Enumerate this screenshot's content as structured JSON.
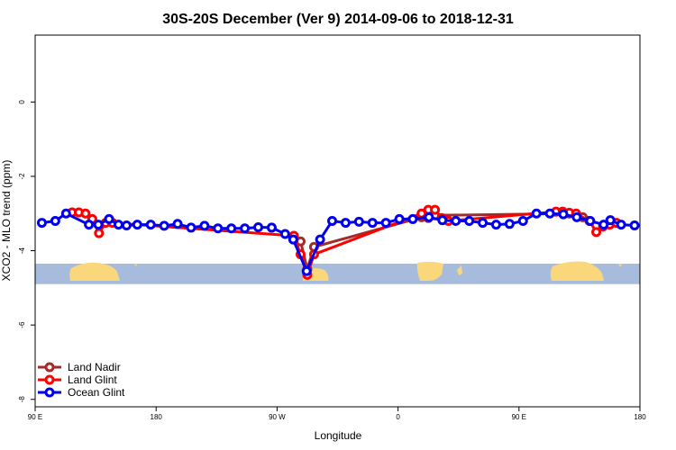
{
  "chart_data": {
    "type": "line",
    "title": "30S-20S December (Ver 9)   2014-09-06 to 2018-12-31",
    "xlabel": "Longitude",
    "ylabel": "XCO2 - MLO trend (ppm)",
    "xlim": [
      90,
      540
    ],
    "ylim": [
      -8.2,
      1.8
    ],
    "x_ticks": [
      {
        "value": 90,
        "label": "90 E"
      },
      {
        "value": 180,
        "label": "180"
      },
      {
        "value": 270,
        "label": "90 W"
      },
      {
        "value": 360,
        "label": "0"
      },
      {
        "value": 450,
        "label": "90 E"
      },
      {
        "value": 540,
        "label": "180"
      }
    ],
    "y_ticks": [
      {
        "value": 0,
        "label": "0"
      },
      {
        "value": -2,
        "label": "-2"
      },
      {
        "value": -4,
        "label": "-4"
      },
      {
        "value": -6,
        "label": "-6"
      },
      {
        "value": -8,
        "label": "-8"
      }
    ],
    "legend_position": "bottom-left",
    "map_strip": {
      "y_range": [
        -4.35,
        -4.9
      ],
      "ocean_color": "#a7bcdc",
      "land_color": "#fad77b"
    },
    "series": [
      {
        "name": "Land Nadir",
        "color": "#a52a2a",
        "points": [
          [
            287.5,
            -3.75
          ],
          [
            292.5,
            -4.5
          ],
          [
            297.5,
            -3.9
          ],
          [
            377.5,
            -3.1
          ],
          [
            382.5,
            -3.12
          ],
          [
            387.5,
            -3.05
          ],
          [
            487.5,
            -3.0
          ],
          [
            492.5,
            -3.05
          ],
          [
            497.5,
            -3.1
          ],
          [
            502.5,
            -3.2
          ]
        ]
      },
      {
        "name": "Land Glint",
        "color": "#ff0000",
        "points": [
          [
            117.5,
            -2.97
          ],
          [
            122.5,
            -2.97
          ],
          [
            127.5,
            -3.0
          ],
          [
            132.5,
            -3.15
          ],
          [
            137.5,
            -3.53
          ],
          [
            142.5,
            -3.25
          ],
          [
            147.5,
            -3.25
          ],
          [
            282.5,
            -3.6
          ],
          [
            287.5,
            -4.1
          ],
          [
            292.5,
            -4.65
          ],
          [
            297.5,
            -4.1
          ],
          [
            377.5,
            -3.0
          ],
          [
            382.5,
            -2.9
          ],
          [
            387.5,
            -2.9
          ],
          [
            392.5,
            -3.12
          ],
          [
            397.5,
            -3.2
          ],
          [
            477.5,
            -2.95
          ],
          [
            482.5,
            -2.95
          ],
          [
            487.5,
            -2.98
          ],
          [
            492.5,
            -3.0
          ],
          [
            502.5,
            -3.2
          ],
          [
            507.5,
            -3.5
          ],
          [
            512.5,
            -3.35
          ],
          [
            517.5,
            -3.3
          ],
          [
            522.5,
            -3.25
          ]
        ]
      },
      {
        "name": "Ocean Glint",
        "color": "#0000ee",
        "points": [
          [
            95,
            -3.25
          ],
          [
            105,
            -3.2
          ],
          [
            113,
            -3.0
          ],
          [
            130,
            -3.3
          ],
          [
            137,
            -3.3
          ],
          [
            145,
            -3.15
          ],
          [
            152,
            -3.3
          ],
          [
            158,
            -3.32
          ],
          [
            166,
            -3.3
          ],
          [
            176,
            -3.3
          ],
          [
            186,
            -3.33
          ],
          [
            196,
            -3.28
          ],
          [
            206,
            -3.38
          ],
          [
            216,
            -3.33
          ],
          [
            226,
            -3.4
          ],
          [
            236,
            -3.4
          ],
          [
            246,
            -3.4
          ],
          [
            256,
            -3.37
          ],
          [
            266,
            -3.38
          ],
          [
            276,
            -3.55
          ],
          [
            282,
            -3.7
          ],
          [
            292,
            -4.55
          ],
          [
            302,
            -3.7
          ],
          [
            311,
            -3.2
          ],
          [
            321,
            -3.25
          ],
          [
            331,
            -3.22
          ],
          [
            341,
            -3.25
          ],
          [
            351,
            -3.25
          ],
          [
            361,
            -3.15
          ],
          [
            371,
            -3.15
          ],
          [
            383,
            -3.1
          ],
          [
            393,
            -3.18
          ],
          [
            403,
            -3.2
          ],
          [
            413,
            -3.2
          ],
          [
            423,
            -3.25
          ],
          [
            433,
            -3.3
          ],
          [
            443,
            -3.28
          ],
          [
            453,
            -3.2
          ],
          [
            463,
            -3.0
          ],
          [
            473,
            -3.0
          ],
          [
            483,
            -3.02
          ],
          [
            493,
            -3.1
          ],
          [
            503,
            -3.2
          ],
          [
            513,
            -3.3
          ],
          [
            518,
            -3.18
          ],
          [
            526,
            -3.3
          ],
          [
            536,
            -3.32
          ]
        ]
      }
    ]
  }
}
